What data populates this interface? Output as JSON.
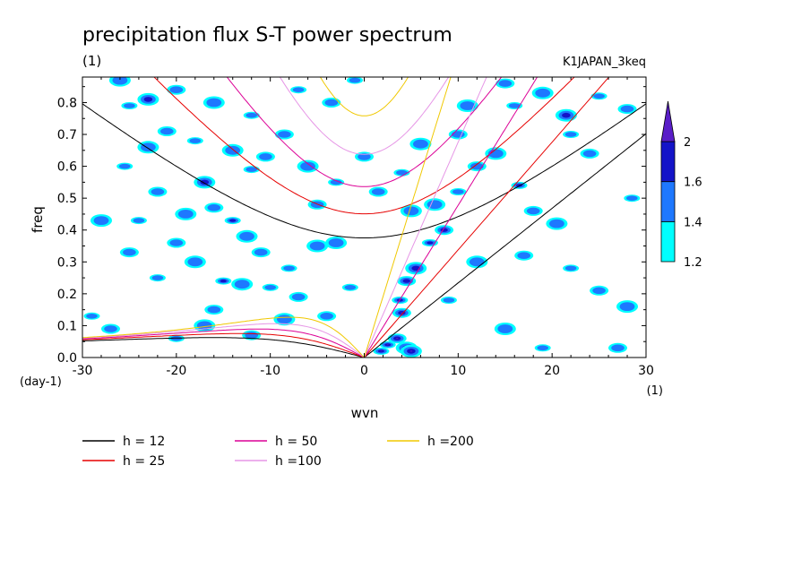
{
  "chart_data": {
    "type": "heatmap",
    "title": "precipitation flux S-T power spectrum",
    "subtitle_left": "(1)",
    "subtitle_right": "K1JAPAN_3keq",
    "xlabel": "wvn",
    "ylabel": "freq",
    "x_unit": "(1)",
    "y_unit": "(day-1)",
    "xlim": [
      -30,
      30
    ],
    "ylim": [
      0,
      0.88
    ],
    "x_ticks": [
      -30,
      -20,
      -10,
      0,
      10,
      20,
      30
    ],
    "x_tick_labels": [
      "-30",
      "-20",
      "-10",
      "0",
      "10",
      "20",
      "30"
    ],
    "y_ticks": [
      0,
      0.1,
      0.2,
      0.3,
      0.4,
      0.5,
      0.6,
      0.7,
      0.8
    ],
    "y_tick_labels": [
      "0.0",
      "0.1",
      "0.2",
      "0.3",
      "0.4",
      "0.5",
      "0.6",
      "0.7",
      "0.8"
    ],
    "colorbar": {
      "levels": [
        1.2,
        1.4,
        1.6,
        2
      ],
      "labels": [
        "1.2",
        "1.4",
        "1.6",
        "2"
      ],
      "colors": [
        "#00ffff",
        "#1e78ff",
        "#1414c8",
        "#5a00b4"
      ]
    },
    "highlight_color": "#5a1ec8",
    "blobs": [
      {
        "x": 2.5,
        "y": 0.04,
        "level": 3
      },
      {
        "x": 3.5,
        "y": 0.06,
        "level": 3
      },
      {
        "x": 4.5,
        "y": 0.03,
        "level": 3
      },
      {
        "x": 1.8,
        "y": 0.02,
        "level": 3
      },
      {
        "x": 4.0,
        "y": 0.14,
        "level": 3
      },
      {
        "x": 5.0,
        "y": 0.02,
        "level": 3
      },
      {
        "x": 3.8,
        "y": 0.18,
        "level": 2
      },
      {
        "x": 4.5,
        "y": 0.24,
        "level": 2
      },
      {
        "x": 5.5,
        "y": 0.28,
        "level": 2
      },
      {
        "x": 7.0,
        "y": 0.36,
        "level": 2
      },
      {
        "x": 8.5,
        "y": 0.4,
        "level": 2
      },
      {
        "x": 7.5,
        "y": 0.48,
        "level": 1
      },
      {
        "x": 10,
        "y": 0.52,
        "level": 1
      },
      {
        "x": 12,
        "y": 0.6,
        "level": 1
      },
      {
        "x": 14,
        "y": 0.64,
        "level": 1
      },
      {
        "x": 16.5,
        "y": 0.54,
        "level": 2
      },
      {
        "x": 18,
        "y": 0.46,
        "level": 1
      },
      {
        "x": 20.5,
        "y": 0.42,
        "level": 1
      },
      {
        "x": 22,
        "y": 0.28,
        "level": 1
      },
      {
        "x": 25,
        "y": 0.21,
        "level": 1
      },
      {
        "x": 28,
        "y": 0.16,
        "level": 1
      },
      {
        "x": 19,
        "y": 0.03,
        "level": 1
      },
      {
        "x": 27,
        "y": 0.03,
        "level": 1
      },
      {
        "x": 15,
        "y": 0.09,
        "level": 1
      },
      {
        "x": 22,
        "y": 0.7,
        "level": 1
      },
      {
        "x": 24,
        "y": 0.64,
        "level": 1
      },
      {
        "x": 19,
        "y": 0.83,
        "level": 1
      },
      {
        "x": 25,
        "y": 0.82,
        "level": 1
      },
      {
        "x": 15,
        "y": 0.86,
        "level": 1
      },
      {
        "x": 21.5,
        "y": 0.76,
        "level": 2
      },
      {
        "x": 16,
        "y": 0.79,
        "level": 1
      },
      {
        "x": 10,
        "y": 0.7,
        "level": 1
      },
      {
        "x": 6,
        "y": 0.67,
        "level": 1
      },
      {
        "x": 4,
        "y": 0.58,
        "level": 1
      },
      {
        "x": 1.5,
        "y": 0.52,
        "level": 1
      },
      {
        "x": 5,
        "y": 0.46,
        "level": 1
      },
      {
        "x": 28.5,
        "y": 0.5,
        "level": 1
      },
      {
        "x": 28,
        "y": 0.78,
        "level": 1
      },
      {
        "x": 12,
        "y": 0.3,
        "level": 1
      },
      {
        "x": 9,
        "y": 0.18,
        "level": 1
      },
      {
        "x": 17,
        "y": 0.32,
        "level": 1
      },
      {
        "x": 11,
        "y": 0.79,
        "level": 1
      },
      {
        "x": -1,
        "y": 0.87,
        "level": 1
      },
      {
        "x": 0,
        "y": 0.63,
        "level": 1
      },
      {
        "x": -5,
        "y": 0.35,
        "level": 1
      },
      {
        "x": -8,
        "y": 0.28,
        "level": 1
      },
      {
        "x": -7,
        "y": 0.19,
        "level": 1
      },
      {
        "x": -8.5,
        "y": 0.12,
        "level": 1
      },
      {
        "x": -10,
        "y": 0.22,
        "level": 1
      },
      {
        "x": -11,
        "y": 0.33,
        "level": 1
      },
      {
        "x": -13,
        "y": 0.23,
        "level": 1
      },
      {
        "x": -15,
        "y": 0.24,
        "level": 2
      },
      {
        "x": -16,
        "y": 0.15,
        "level": 1
      },
      {
        "x": -12.5,
        "y": 0.38,
        "level": 1
      },
      {
        "x": -14,
        "y": 0.43,
        "level": 2
      },
      {
        "x": -16,
        "y": 0.47,
        "level": 1
      },
      {
        "x": -17,
        "y": 0.55,
        "level": 2
      },
      {
        "x": -12,
        "y": 0.59,
        "level": 1
      },
      {
        "x": -10.5,
        "y": 0.63,
        "level": 1
      },
      {
        "x": -14,
        "y": 0.65,
        "level": 1
      },
      {
        "x": -18,
        "y": 0.68,
        "level": 1
      },
      {
        "x": -21,
        "y": 0.71,
        "level": 1
      },
      {
        "x": -23,
        "y": 0.66,
        "level": 1
      },
      {
        "x": -25.5,
        "y": 0.6,
        "level": 1
      },
      {
        "x": -22,
        "y": 0.52,
        "level": 1
      },
      {
        "x": -19,
        "y": 0.45,
        "level": 1
      },
      {
        "x": -24,
        "y": 0.43,
        "level": 1
      },
      {
        "x": -20,
        "y": 0.36,
        "level": 1
      },
      {
        "x": -18,
        "y": 0.3,
        "level": 1
      },
      {
        "x": -22,
        "y": 0.25,
        "level": 1
      },
      {
        "x": -25,
        "y": 0.33,
        "level": 1
      },
      {
        "x": -28,
        "y": 0.43,
        "level": 1
      },
      {
        "x": -29,
        "y": 0.13,
        "level": 1
      },
      {
        "x": -27,
        "y": 0.09,
        "level": 1
      },
      {
        "x": -23,
        "y": 0.81,
        "level": 2
      },
      {
        "x": -25,
        "y": 0.79,
        "level": 1
      },
      {
        "x": -20,
        "y": 0.84,
        "level": 1
      },
      {
        "x": -16,
        "y": 0.8,
        "level": 1
      },
      {
        "x": -12,
        "y": 0.76,
        "level": 1
      },
      {
        "x": -8.5,
        "y": 0.7,
        "level": 1
      },
      {
        "x": -6,
        "y": 0.6,
        "level": 1
      },
      {
        "x": -3,
        "y": 0.55,
        "level": 1
      },
      {
        "x": -5,
        "y": 0.48,
        "level": 1
      },
      {
        "x": -3,
        "y": 0.36,
        "level": 1
      },
      {
        "x": -1.5,
        "y": 0.22,
        "level": 1
      },
      {
        "x": -4,
        "y": 0.13,
        "level": 1
      },
      {
        "x": -17,
        "y": 0.1,
        "level": 1
      },
      {
        "x": -20,
        "y": 0.06,
        "level": 1
      },
      {
        "x": -12,
        "y": 0.07,
        "level": 1
      },
      {
        "x": -26,
        "y": 0.87,
        "level": 1
      },
      {
        "x": -7,
        "y": 0.84,
        "level": 1
      },
      {
        "x": -3.5,
        "y": 0.8,
        "level": 1
      }
    ],
    "series": [
      {
        "name": "h = 12",
        "h": 12,
        "color": "#000000"
      },
      {
        "name": "h = 25",
        "h": 25,
        "color": "#e60000"
      },
      {
        "name": "h = 50",
        "h": 50,
        "color": "#dc0096"
      },
      {
        "name": "h =100",
        "h": 100,
        "color": "#e696e6"
      },
      {
        "name": "h =200",
        "h": 200,
        "color": "#f0c800"
      }
    ]
  }
}
